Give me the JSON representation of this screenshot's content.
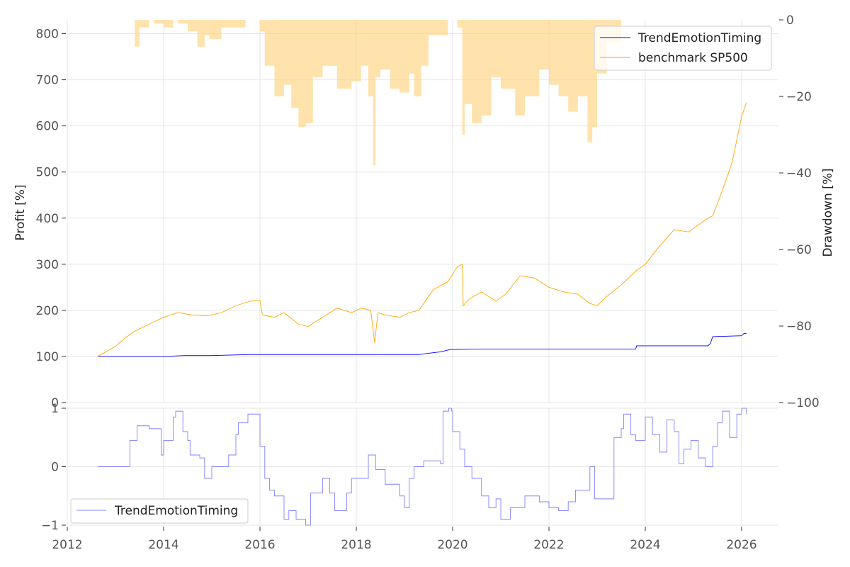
{
  "chart_data": [
    {
      "type": "line",
      "panel": "main",
      "ylabel": "Profit [%]",
      "ylim": [
        0,
        830
      ],
      "yticks": [
        0,
        100,
        200,
        300,
        400,
        500,
        600,
        700,
        800
      ],
      "xlim": [
        2012,
        2026.75
      ],
      "grid": true,
      "legend": "top-right",
      "series": [
        {
          "name": "TrendEmotionTiming",
          "color": "#0000ff",
          "x": [
            2012.63,
            2014.0,
            2014.45,
            2015.0,
            2015.75,
            2016.5,
            2017.5,
            2018.5,
            2019.3,
            2019.5,
            2019.75,
            2019.95,
            2020.5,
            2021.5,
            2022.5,
            2023.5,
            2023.8,
            2023.82,
            2024.5,
            2025.3,
            2025.35,
            2025.4,
            2026.0,
            2026.05,
            2026.1
          ],
          "values": [
            100,
            100,
            102,
            102,
            104,
            104,
            104,
            104,
            104,
            107,
            110,
            115,
            116,
            116,
            116,
            116,
            116,
            123,
            123,
            123,
            128,
            143,
            145,
            150,
            150
          ]
        },
        {
          "name": "benchmark SP500",
          "color": "#ffa500",
          "x": [
            2012.63,
            2012.8,
            2013.0,
            2013.2,
            2013.4,
            2013.6,
            2013.8,
            2014.0,
            2014.3,
            2014.6,
            2014.9,
            2015.2,
            2015.5,
            2015.8,
            2016.0,
            2016.05,
            2016.3,
            2016.5,
            2016.8,
            2017.0,
            2017.3,
            2017.6,
            2017.9,
            2018.1,
            2018.3,
            2018.38,
            2018.45,
            2018.6,
            2018.9,
            2019.1,
            2019.3,
            2019.6,
            2019.9,
            2020.1,
            2020.2,
            2020.22,
            2020.35,
            2020.6,
            2020.9,
            2021.1,
            2021.4,
            2021.7,
            2022.0,
            2022.3,
            2022.6,
            2022.85,
            2023.0,
            2023.2,
            2023.5,
            2023.8,
            2024.0,
            2024.3,
            2024.6,
            2024.9,
            2025.1,
            2025.3,
            2025.4,
            2025.6,
            2025.8,
            2026.0,
            2026.1
          ],
          "values": [
            100,
            110,
            122,
            140,
            155,
            165,
            175,
            185,
            195,
            190,
            188,
            195,
            210,
            220,
            222,
            190,
            185,
            195,
            170,
            165,
            185,
            205,
            195,
            205,
            200,
            130,
            195,
            190,
            185,
            195,
            200,
            245,
            262,
            295,
            300,
            210,
            225,
            240,
            220,
            235,
            275,
            270,
            250,
            240,
            235,
            215,
            210,
            230,
            255,
            285,
            300,
            340,
            375,
            370,
            385,
            400,
            405,
            460,
            520,
            620,
            650
          ]
        }
      ]
    },
    {
      "type": "area",
      "panel": "main",
      "ylabel": "Drawdown [%]",
      "ylim": [
        -100,
        0
      ],
      "yticks": [
        0,
        -20,
        -40,
        -60,
        -80,
        -100
      ],
      "color": "#ffd27f",
      "x": [
        2012.6,
        2012.9,
        2013.3,
        2013.4,
        2013.5,
        2013.7,
        2013.8,
        2014.0,
        2014.2,
        2014.3,
        2014.5,
        2014.7,
        2014.85,
        2014.95,
        2015.2,
        2015.5,
        2015.7,
        2015.9,
        2016.0,
        2016.1,
        2016.3,
        2016.5,
        2016.65,
        2016.8,
        2016.95,
        2017.1,
        2017.3,
        2017.6,
        2017.9,
        2018.1,
        2018.25,
        2018.35,
        2018.4,
        2018.5,
        2018.7,
        2018.9,
        2019.1,
        2019.2,
        2019.35,
        2019.5,
        2019.9,
        2020.1,
        2020.2,
        2020.25,
        2020.4,
        2020.6,
        2020.8,
        2021.0,
        2021.3,
        2021.5,
        2021.8,
        2022.0,
        2022.2,
        2022.4,
        2022.6,
        2022.8,
        2022.9,
        2023.0,
        2023.2,
        2023.5,
        2023.9,
        2024.5,
        2025.0,
        2025.5,
        2026.1
      ],
      "values": [
        0,
        0,
        0,
        -7,
        -2,
        0,
        -1,
        -2,
        0,
        -1,
        -3,
        -7,
        -4,
        -5,
        -2,
        -2,
        0,
        0,
        -3,
        -12,
        -20,
        -17,
        -23,
        -28,
        -27,
        -15,
        -12,
        -18,
        -16,
        -12,
        -20,
        -38,
        -15,
        -13,
        -18,
        -19,
        -14,
        -20,
        -12,
        -4,
        0,
        -2,
        -30,
        -22,
        -27,
        -25,
        -15,
        -18,
        -25,
        -20,
        -13,
        -17,
        -20,
        -24,
        -20,
        -32,
        -28,
        -14,
        -6,
        0,
        0,
        0,
        0,
        0,
        0
      ]
    },
    {
      "type": "line",
      "panel": "bottom",
      "ylim": [
        -1,
        1
      ],
      "yticks": [
        -1,
        0,
        1
      ],
      "xlim": [
        2012,
        2026.75
      ],
      "xticks": [
        2012,
        2014,
        2016,
        2018,
        2020,
        2022,
        2024,
        2026
      ],
      "grid": true,
      "legend": "bottom-left",
      "series": [
        {
          "name": "TrendEmotionTiming",
          "color": "#8080ff",
          "x": [
            2012.63,
            2013.3,
            2013.45,
            2013.7,
            2013.95,
            2014.0,
            2014.2,
            2014.25,
            2014.4,
            2014.5,
            2014.55,
            2014.75,
            2014.85,
            2015.0,
            2015.35,
            2015.5,
            2015.55,
            2015.75,
            2016.0,
            2016.1,
            2016.2,
            2016.3,
            2016.5,
            2016.6,
            2016.75,
            2016.95,
            2017.05,
            2017.3,
            2017.45,
            2017.55,
            2017.8,
            2017.9,
            2018.25,
            2018.4,
            2018.6,
            2018.9,
            2019.0,
            2019.1,
            2019.2,
            2019.4,
            2019.75,
            2019.8,
            2019.92,
            2019.98,
            2020.0,
            2020.15,
            2020.25,
            2020.4,
            2020.6,
            2020.75,
            2020.9,
            2021.0,
            2021.2,
            2021.5,
            2021.8,
            2022.0,
            2022.2,
            2022.4,
            2022.55,
            2022.85,
            2022.95,
            2023.2,
            2023.35,
            2023.5,
            2023.55,
            2023.7,
            2023.8,
            2024.0,
            2024.15,
            2024.3,
            2024.45,
            2024.6,
            2024.7,
            2024.8,
            2024.95,
            2025.1,
            2025.25,
            2025.4,
            2025.5,
            2025.6,
            2025.75,
            2025.9,
            2026.0,
            2026.1
          ],
          "values": [
            0,
            0.45,
            0.7,
            0.65,
            0.2,
            0.45,
            0.85,
            0.95,
            0.6,
            0.45,
            0.2,
            0.15,
            -0.2,
            0,
            0.2,
            0.55,
            0.75,
            0.9,
            0.35,
            -0.2,
            -0.4,
            -0.5,
            -0.9,
            -0.75,
            -0.9,
            -1,
            -0.45,
            -0.2,
            -0.45,
            -0.75,
            -0.45,
            -0.2,
            0.2,
            -0.05,
            -0.3,
            -0.5,
            -0.7,
            -0.2,
            0,
            0.1,
            0.05,
            0.95,
            1,
            0.95,
            0.6,
            0.3,
            0,
            -0.2,
            -0.5,
            -0.7,
            -0.55,
            -0.9,
            -0.7,
            -0.5,
            -0.6,
            -0.7,
            -0.75,
            -0.6,
            -0.4,
            0,
            -0.55,
            -0.55,
            0.5,
            0.65,
            0.9,
            0.55,
            0.45,
            0.85,
            0.55,
            0.25,
            0.8,
            0.6,
            0.05,
            0.3,
            0.45,
            0.15,
            0,
            0.35,
            0.75,
            0.95,
            0.5,
            0.9,
            1,
            0.9
          ]
        }
      ]
    }
  ]
}
